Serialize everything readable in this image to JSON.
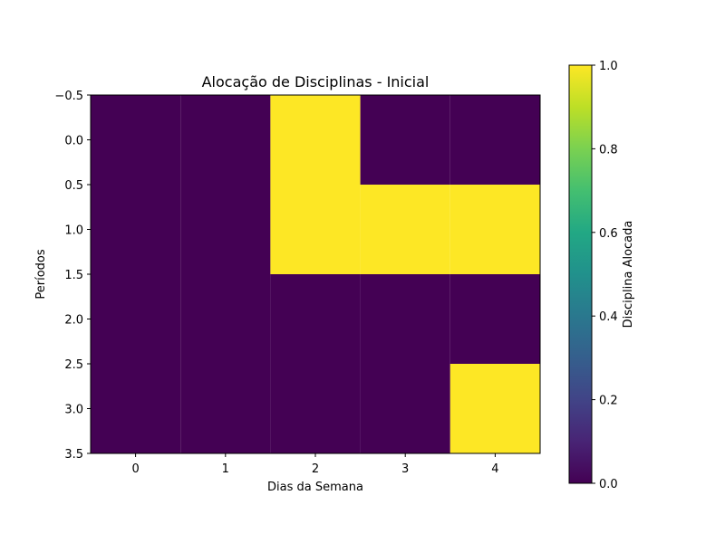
{
  "chart_data": {
    "type": "heatmap",
    "title": "Alocação de Disciplinas - Inicial",
    "xlabel": "Dias da Semana",
    "ylabel": "Períodos",
    "colorbar_label": "Disciplina Alocada",
    "x_categories": [
      0,
      1,
      2,
      3,
      4
    ],
    "y_categories": [
      0,
      1,
      2,
      3
    ],
    "values": [
      [
        0,
        0,
        1,
        0,
        0
      ],
      [
        0,
        0,
        1,
        1,
        1
      ],
      [
        0,
        0,
        0,
        0,
        0
      ],
      [
        0,
        0,
        0,
        0,
        1
      ]
    ],
    "xlim": [
      -0.5,
      4.5
    ],
    "ylim": [
      -0.5,
      3.5
    ],
    "x_ticks": [
      "0",
      "1",
      "2",
      "3",
      "4"
    ],
    "y_ticks": [
      "−0.5",
      "0.0",
      "0.5",
      "1.0",
      "1.5",
      "2.0",
      "2.5",
      "3.0",
      "3.5"
    ],
    "y_tick_values": [
      -0.5,
      0.0,
      0.5,
      1.0,
      1.5,
      2.0,
      2.5,
      3.0,
      3.5
    ],
    "colorbar_range": [
      0,
      1
    ],
    "colorbar_ticks": [
      "0.0",
      "0.2",
      "0.4",
      "0.6",
      "0.8",
      "1.0"
    ],
    "colorbar_tick_values": [
      0,
      0.2,
      0.4,
      0.6,
      0.8,
      1.0
    ],
    "colormap": "viridis",
    "colors": {
      "low": "#440154",
      "high": "#fde725"
    }
  }
}
